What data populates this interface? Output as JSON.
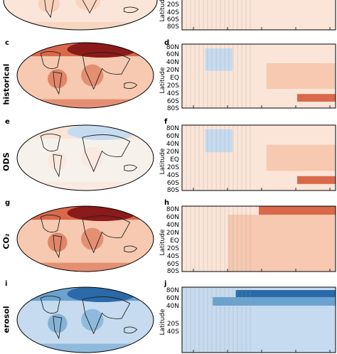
{
  "rows": [
    {
      "map_letter": "",
      "hov_letter": "",
      "label": "",
      "lat_ticks": [
        "20S",
        "40S",
        "60S",
        "80S"
      ],
      "map_tone": "warm-light",
      "hov_tone": "warm-light"
    },
    {
      "map_letter": "c",
      "hov_letter": "d",
      "label": "historical",
      "lat_ticks": [
        "80N",
        "60N",
        "40N",
        "20N",
        "EQ",
        "20S",
        "40S",
        "60S",
        "80S"
      ],
      "map_tone": "warm",
      "hov_tone": "mixed"
    },
    {
      "map_letter": "e",
      "hov_letter": "f",
      "label": "ODS",
      "lat_ticks": [
        "80N",
        "60N",
        "40N",
        "20N",
        "EQ",
        "20S",
        "40S",
        "60S",
        "80S"
      ],
      "map_tone": "neutral",
      "hov_tone": "mixed"
    },
    {
      "map_letter": "g",
      "hov_letter": "h",
      "label": "CO₂",
      "lat_ticks": [
        "80N",
        "60N",
        "40N",
        "20N",
        "EQ",
        "20S",
        "40S",
        "60S",
        "80S"
      ],
      "map_tone": "warm",
      "hov_tone": "warm-late"
    },
    {
      "map_letter": "i",
      "hov_letter": "j",
      "label": "erosol",
      "lat_ticks": [
        "80N",
        "60N",
        "40N",
        "20S",
        "40S"
      ],
      "map_tone": "cool",
      "hov_tone": "cool"
    }
  ],
  "axis_title": "Latitude",
  "colors": {
    "warm_dark": "#8b1a1a",
    "warm_mid": "#d9694a",
    "warm_light": "#f6c9b0",
    "warm_pale": "#fbe5d8",
    "cool_light": "#c6dbef",
    "cool_mid": "#6aa3cf",
    "cool_dark": "#2a6aa8",
    "neutral": "#f7f1ec"
  }
}
